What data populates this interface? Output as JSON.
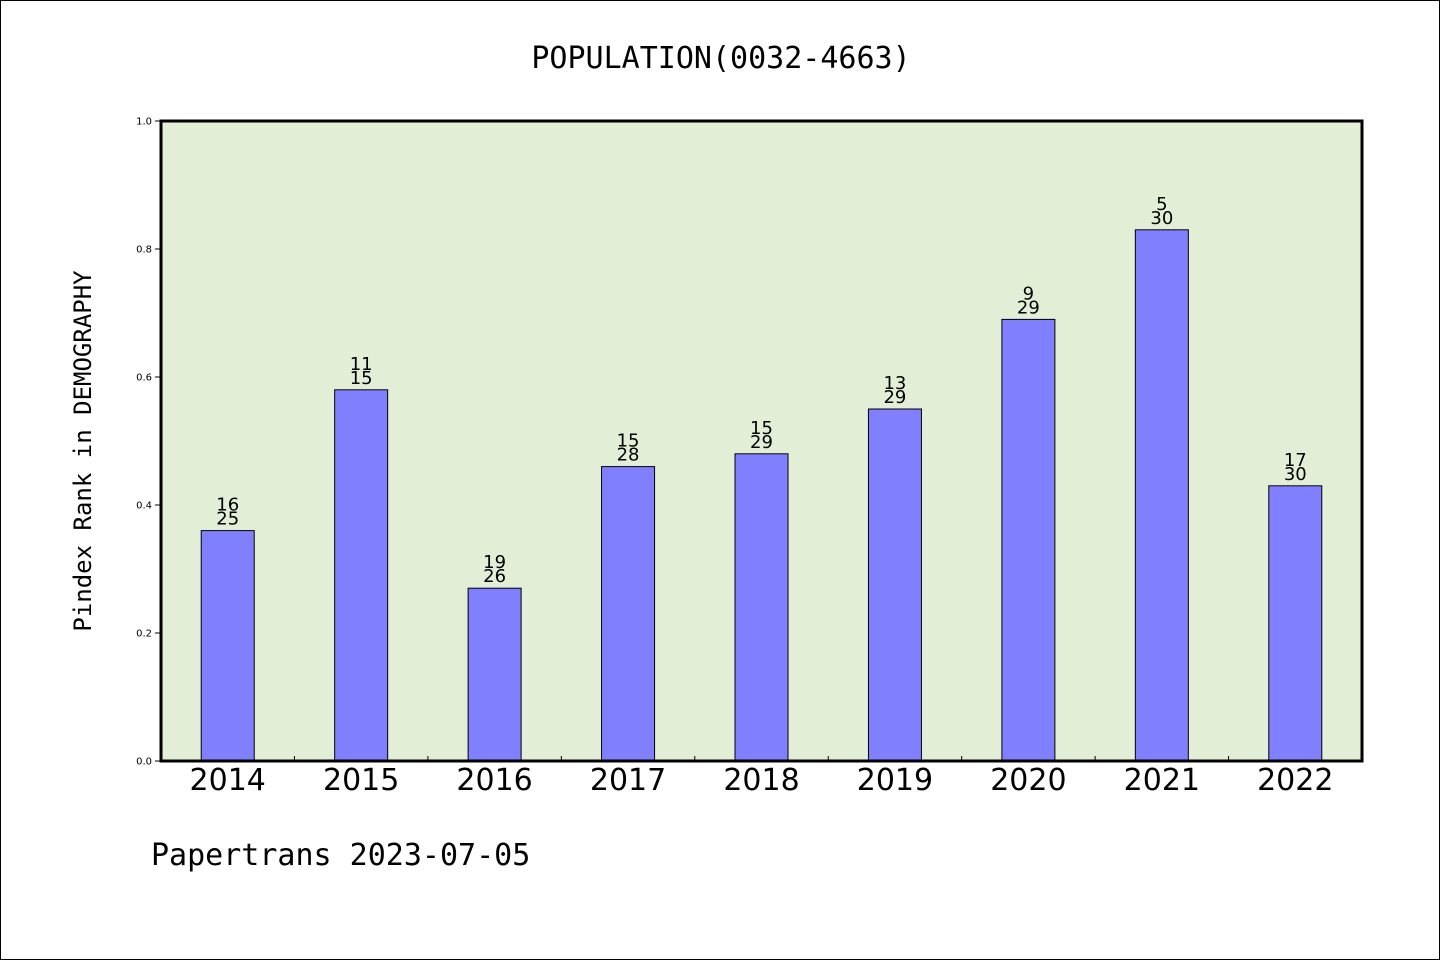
{
  "chart_data": {
    "type": "bar",
    "title": "POPULATION(0032-4663)",
    "ylabel": "Pindex Rank in DEMOGRAPHY",
    "xlabel": "",
    "footer": "Papertrans 2023-07-05",
    "categories": [
      "2014",
      "2015",
      "2016",
      "2017",
      "2018",
      "2019",
      "2020",
      "2021",
      "2022"
    ],
    "values": [
      0.36,
      0.58,
      0.27,
      0.46,
      0.48,
      0.55,
      0.69,
      0.83,
      0.43
    ],
    "labels_top": [
      "16",
      "11",
      "19",
      "15",
      "15",
      "13",
      "9",
      "5",
      "17"
    ],
    "labels_bottom": [
      "25",
      "15",
      "26",
      "28",
      "29",
      "29",
      "29",
      "30",
      "30"
    ],
    "ylim": [
      0.0,
      1.0
    ],
    "yticks": [
      "0.0",
      "0.2",
      "0.4",
      "0.6",
      "0.8",
      "1.0"
    ],
    "grid": false,
    "colors": {
      "plot_background": "#e2efd6",
      "bar_fill": "#8080ff",
      "bar_edge": "#000000",
      "axis": "#000000"
    }
  }
}
